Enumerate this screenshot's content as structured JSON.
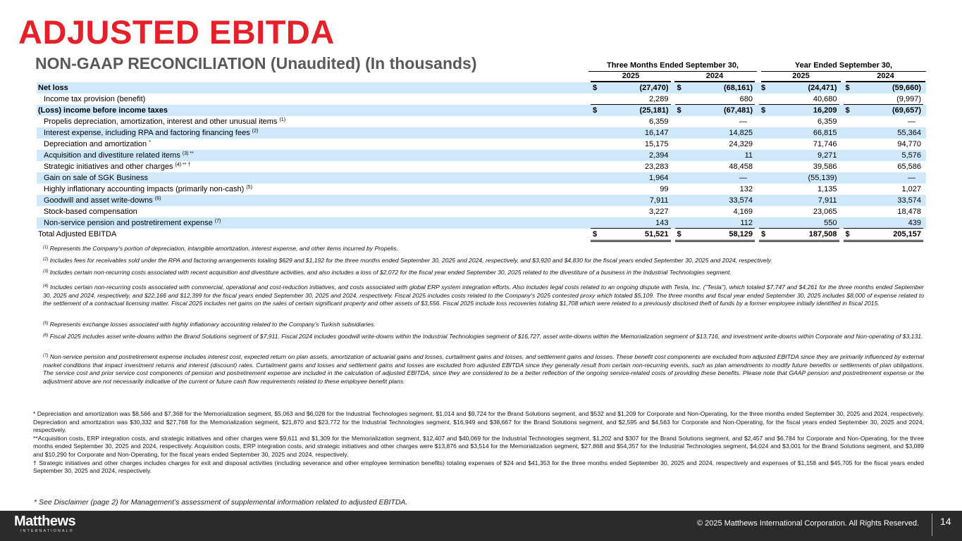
{
  "title": "ADJUSTED EBITDA",
  "subtitle": "NON-GAAP RECONCILIATION (Unaudited) (In thousands)",
  "table": {
    "groups": [
      "Three Months Ended September 30,",
      "Year Ended September 30,"
    ],
    "years": [
      "2025",
      "2024",
      "2025",
      "2024"
    ],
    "rows": [
      {
        "label": "Net loss",
        "sup": "",
        "values": [
          "(27,470)",
          "(68,161)",
          "(24,471)",
          "(59,660)"
        ],
        "dollar": true,
        "style": "bold"
      },
      {
        "label": "Income tax provision (benefit)",
        "sup": "",
        "values": [
          "2,289",
          "680",
          "40,680",
          "(9,997)"
        ]
      },
      {
        "label": "(Loss) income before income taxes",
        "sup": "",
        "values": [
          "(25,181)",
          "(67,481)",
          "16,209",
          "(69,657)"
        ],
        "dollar": true,
        "style": "bold"
      },
      {
        "label": "Propelis depreciation, amortization, interest and other unusual items",
        "sup": "(1)",
        "values": [
          "6,359",
          "—",
          "6,359",
          "—"
        ]
      },
      {
        "label": "Interest expense, including RPA and factoring financing fees",
        "sup": "(2)",
        "values": [
          "16,147",
          "14,825",
          "66,815",
          "55,364"
        ]
      },
      {
        "label": "Depreciation and amortization",
        "sup": "*",
        "values": [
          "15,175",
          "24,329",
          "71,746",
          "94,770"
        ]
      },
      {
        "label": "Acquisition and divestiture related items",
        "sup": "(3) **",
        "values": [
          "2,394",
          "11",
          "9,271",
          "5,576"
        ]
      },
      {
        "label": "Strategic initiatives and other charges",
        "sup": "(4) ** †",
        "values": [
          "23,283",
          "48,458",
          "39,586",
          "65,586"
        ]
      },
      {
        "label": "Gain on sale of SGK Business",
        "sup": "",
        "values": [
          "1,964",
          "—",
          "(55,139)",
          "—"
        ]
      },
      {
        "label": "Highly inflationary accounting impacts (primarily non-cash)",
        "sup": "(5)",
        "values": [
          "99",
          "132",
          "1,135",
          "1,027"
        ]
      },
      {
        "label": "Goodwill and asset write-downs",
        "sup": "(6)",
        "values": [
          "7,911",
          "33,574",
          "7,911",
          "33,574"
        ]
      },
      {
        "label": "Stock-based compensation",
        "sup": "",
        "values": [
          "3,227",
          "4,169",
          "23,065",
          "18,478"
        ]
      },
      {
        "label": "Non-service pension and postretirement expense",
        "sup": "(7)",
        "values": [
          "143",
          "112",
          "550",
          "439"
        ]
      },
      {
        "label": "Total Adjusted EBITDA",
        "sup": "",
        "values": [
          "51,521",
          "58,129",
          "187,508",
          "205,157"
        ],
        "dollar": true,
        "style": "total"
      }
    ],
    "currency_symbol": "$"
  },
  "footnotes": [
    {
      "mark": "(1)",
      "text": "Represents the Company's portion of depreciation, intangible amortization, interest expense, and other items incurred by Propelis."
    },
    {
      "mark": "(2)",
      "text": "Includes fees for receivables sold under the RPA and factoring arrangements totaling $629 and $1,192 for the three months ended September 30, 2025 and 2024, respectively, and $3,920 and $4,830 for the fiscal years ended September 30, 2025 and 2024, respectively."
    },
    {
      "mark": "(3)",
      "text": "Includes certain non-recurring costs associated with recent acquisition and divestiture activities, and also includes a loss of $2,072 for the fiscal year ended September 30, 2025 related to the divestiture of a business in the Industrial Technologies segment."
    },
    {
      "mark": "(4)",
      "text": "Includes certain non-recurring costs associated with commercial, operational and cost-reduction initiatives, and costs associated with global ERP system integration efforts. Also includes legal costs related to an ongoing dispute with Tesla, Inc. (\"Tesla\"), which totaled $7,747 and $4,261 for the three months ended September 30, 2025 and 2024, respectively, and $22,166 and $12,399 for the fiscal years ended September 30, 2025 and 2024, respectively.  Fiscal 2025 includes costs related to the Company's 2025 contested proxy which totaled $5,109. The three months and fiscal year ended September 30, 2025 includes $8,000 of expense related to the settlement of a contractual licensing matter. Fiscal 2025 includes net gains on the sales of certain significant property and other assets of $3,556.  Fiscal 2025 include loss recoveries totaling $1,708 which were related to a previously disclosed theft of funds by a former employee initially identified in fiscal 2015."
    },
    {
      "mark": "(5)",
      "text": "Represents exchange losses associated with highly inflationary accounting related to the Company's Turkish subsidiaries."
    },
    {
      "mark": "(6)",
      "text": "Fiscal 2025 includes asset write-downs within the Brand Solutions segment of $7,911. Fiscal 2024 includes goodwill write-downs within the Industrial Technologies segment of $16,727, asset write-downs within the Memorialization segment of $13,716, and investment write-downs within Corporate and Non-operating of $3,131."
    },
    {
      "mark": "(7)",
      "text": "Non-service pension and postretirement expense includes interest cost, expected return on plan assets, amortization of actuarial gains and losses, curtailment gains and losses, and settlement gains and losses. These benefit cost components are excluded from adjusted EBITDA since they are primarily influenced by external market conditions that impact investment returns and interest (discount) rates. Curtailment gains and losses and settlement gains and losses are excluded from adjusted EBITDA since they generally result from certain non-recurring events, such as plan amendments to modify future benefits or settlements of plan obligations. The service cost and prior service cost components of pension and postretirement expense are included in the calculation of adjusted EBITDA, since they are considered to be a better reflection of the ongoing service-related costs of providing these benefits. Please note that GAAP pension and postretirement expense or the adjustment above are not necessarily indicative of the current or future cash flow requirements related to these employee benefit plans."
    }
  ],
  "notes": [
    "* Depreciation and amortization was $8,566 and $7,368 for the Memorialization segment, $5,063 and $6,028 for the Industrial Technologies segment, $1,014 and $9,724 for the Brand Solutions segment, and $532 and $1,209 for Corporate and Non-Operating, for the three months ended September 30, 2025 and 2024, respectively. Depreciation and amortization was $30,332 and $27,768 for the Memorialization segment, $21,870 and $23,772 for the Industrial Technologies segment, $16,949 and $38,667 for the Brand Solutions segment, and $2,595 and $4,563 for Corporate and Non-Operating, for the fiscal years ended September 30, 2025 and 2024, respectively.",
    "**Acquisition costs, ERP integration costs, and strategic initiatives and other charges were $9,611 and $1,309 for the Memorialization segment,  $12,407 and $40,069 for the Industrial Technologies segment, $1,202 and $307 for the Brand Solutions segment, and $2,457 and $6,784 for Corporate and Non-Operating, for the three months ended September 30, 2025 and 2024, respectively. Acquisition costs, ERP integration costs, and strategic initiatives and other charges were $13,876 and $3,514 for the Memorialization segment, $27,868 and $54,357 for the Industrial Technologies segment, $4,024 and $3,001 for the Brand Solutions segment, and $3,089 and $10,290 for Corporate and Non-Operating, for the fiscal years ended September 30, 2025 and 2024, respectively.",
    "† Strategic initiatives and other charges includes charges for exit and disposal activities (including severance and other employee termination benefits) totaling expenses of $24 and $41,353 for the three months ended September 30, 2025 and 2024, respectively and expenses of $1,158 and $45,705 for the fiscal years ended September 30, 2025 and 2024, respectively."
  ],
  "disclaimer": "* See Disclaimer (page 2) for Management’s assessment of supplemental information related to adjusted EBITDA.",
  "footer": {
    "logo_name": "Matthews",
    "logo_sub": "INTERNATIONAL®",
    "copyright": "© 2025 Matthews International Corporation. All Rights Reserved.",
    "page_number": "14"
  },
  "colors": {
    "title": "#e4202a",
    "row_shade": "#cfe9fb",
    "footer_bg": "#2b2b2b"
  }
}
